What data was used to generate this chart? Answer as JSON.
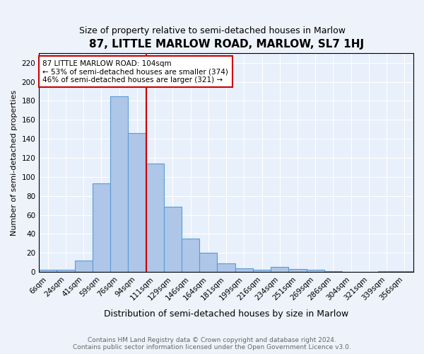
{
  "title": "87, LITTLE MARLOW ROAD, MARLOW, SL7 1HJ",
  "subtitle": "Size of property relative to semi-detached houses in Marlow",
  "xlabel": "Distribution of semi-detached houses by size in Marlow",
  "ylabel": "Number of semi-detached properties",
  "footer_line1": "Contains HM Land Registry data © Crown copyright and database right 2024.",
  "footer_line2": "Contains public sector information licensed under the Open Government Licence v3.0.",
  "bar_labels": [
    "6sqm",
    "24sqm",
    "41sqm",
    "59sqm",
    "76sqm",
    "94sqm",
    "111sqm",
    "129sqm",
    "146sqm",
    "164sqm",
    "181sqm",
    "199sqm",
    "216sqm",
    "234sqm",
    "251sqm",
    "269sqm",
    "286sqm",
    "304sqm",
    "321sqm",
    "339sqm",
    "356sqm"
  ],
  "bar_values": [
    2,
    2,
    12,
    93,
    185,
    146,
    114,
    69,
    35,
    20,
    9,
    4,
    2,
    5,
    3,
    2,
    1,
    0,
    0,
    1,
    1
  ],
  "bar_color": "#aec6e8",
  "bar_edge_color": "#5b9bd5",
  "ylim": [
    0,
    230
  ],
  "yticks": [
    0,
    20,
    40,
    60,
    80,
    100,
    120,
    140,
    160,
    180,
    200,
    220
  ],
  "red_line_color": "#cc0000",
  "red_line_x": 5.5,
  "annotation_text": "87 LITTLE MARLOW ROAD: 104sqm\n← 53% of semi-detached houses are smaller (374)\n46% of semi-detached houses are larger (321) →",
  "annotation_box_facecolor": "#ffffff",
  "annotation_box_edgecolor": "#cc0000",
  "background_color": "#e8f0fb",
  "fig_background_color": "#eef2fa",
  "grid_color": "#ffffff",
  "title_fontsize": 11,
  "subtitle_fontsize": 9,
  "ylabel_fontsize": 8,
  "xlabel_fontsize": 9,
  "tick_fontsize": 7.5,
  "footer_fontsize": 6.5,
  "footer_color": "#666666"
}
